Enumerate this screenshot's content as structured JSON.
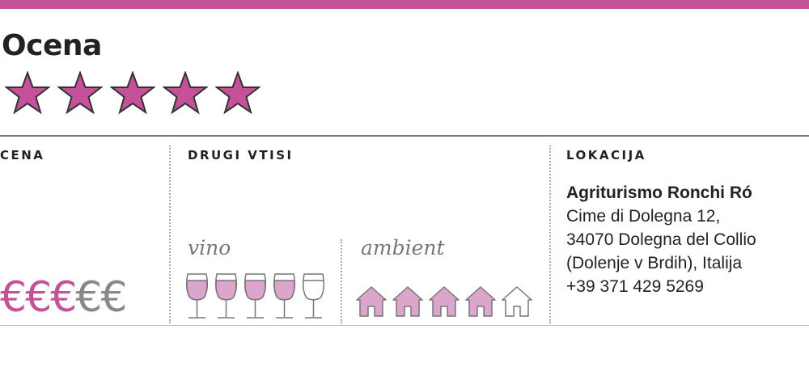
{
  "colors": {
    "accent": "#c4519a",
    "glass_fill": "#dca5cc",
    "inactive": "#888888"
  },
  "rating": {
    "title": "Ocena",
    "stars": 5,
    "max_stars": 5,
    "icon": "star-icon"
  },
  "price": {
    "header": "CENA",
    "symbol": "€",
    "level": 3,
    "max": 5
  },
  "impressions": {
    "header": "DRUGI VTISI",
    "wine": {
      "label": "vino",
      "level": 4,
      "max": 5,
      "icon": "wine-glass-icon"
    },
    "ambience": {
      "label": "ambient",
      "level": 4,
      "max": 5,
      "icon": "house-icon"
    }
  },
  "location": {
    "header": "LOKACIJA",
    "name": "Agriturismo Ronchi Ró",
    "lines": [
      "Cime di Dolegna 12,",
      "34070 Dolegna del Collio",
      "(Dolenje v Brdih), Italija",
      "+39 371 429 5269"
    ]
  }
}
